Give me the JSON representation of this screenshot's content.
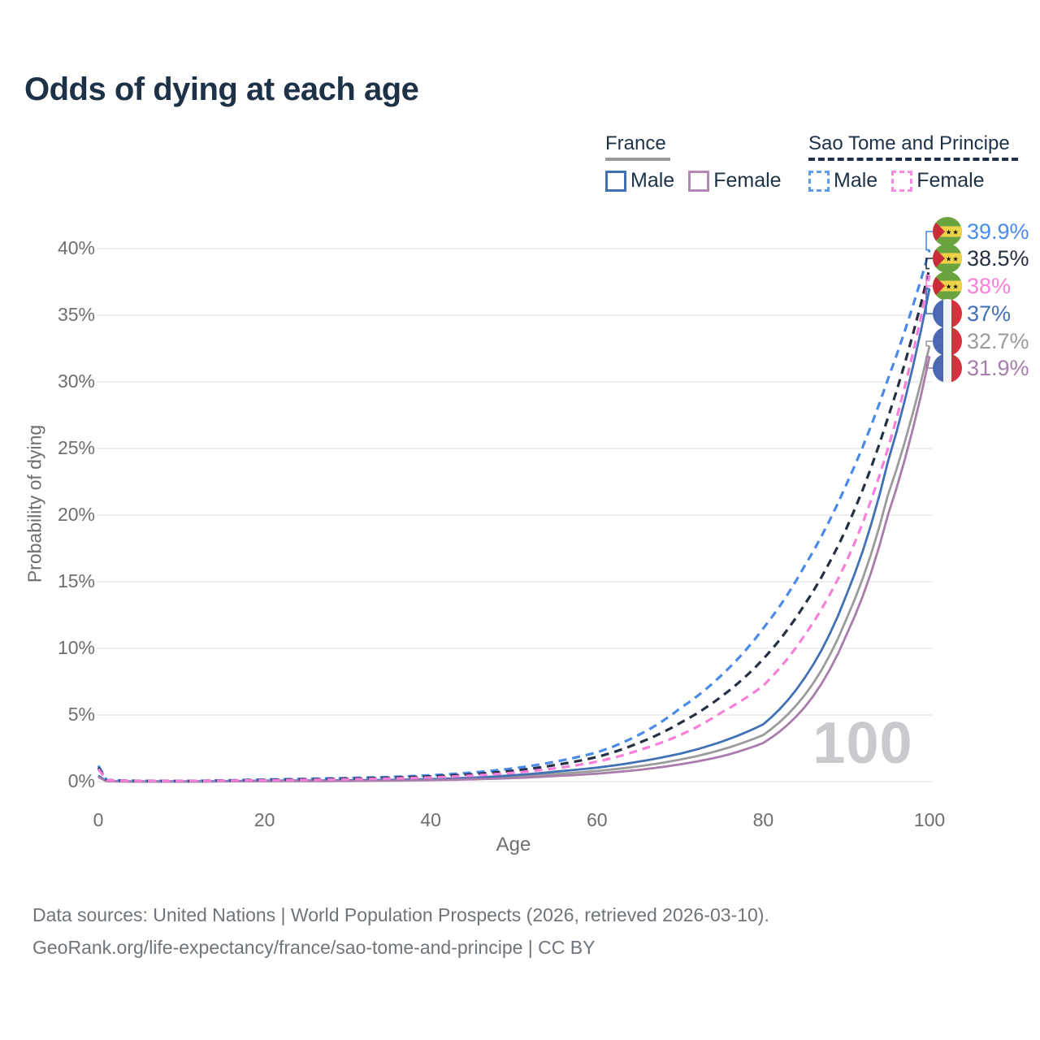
{
  "title": "Odds of dying at each age",
  "legend": {
    "groups": [
      {
        "name": "France",
        "line_style": "solid",
        "underline_color": "#9b9b9b",
        "items": [
          {
            "label": "Male",
            "color": "#4270b4"
          },
          {
            "label": "Female",
            "color": "#b287b5"
          }
        ]
      },
      {
        "name": "Sao Tome and Principe",
        "line_style": "dashed",
        "underline_color": "#20304a",
        "items": [
          {
            "label": "Male",
            "color": "#5e9bed"
          },
          {
            "label": "Female",
            "color": "#fb8ae4"
          }
        ]
      }
    ]
  },
  "chart_data": {
    "type": "line",
    "title": "Odds of dying at each age",
    "xlabel": "Age",
    "ylabel": "Probability of dying",
    "xlim": [
      0,
      100
    ],
    "ylim": [
      0,
      40
    ],
    "x_ticks": [
      0,
      20,
      40,
      60,
      80,
      100
    ],
    "y_ticks": [
      0,
      5,
      10,
      15,
      20,
      25,
      30,
      35,
      40
    ],
    "y_tick_suffix": "%",
    "grid": "horizontal",
    "legend_position": "top-right",
    "hover_age_label": "100",
    "x": [
      0,
      1,
      5,
      10,
      15,
      20,
      25,
      30,
      35,
      40,
      45,
      50,
      55,
      60,
      65,
      70,
      75,
      80,
      85,
      90,
      95,
      100
    ],
    "series": [
      {
        "name": "Sao Tome and Principe Male",
        "country": "Sao Tome and Principe",
        "sex": "Male",
        "flag": "sao-tome-and-principe",
        "color": "#4a8bea",
        "dashed": true,
        "end_value": 39.9,
        "end_label": "39.9%",
        "values": [
          1.2,
          0.12,
          0.055,
          0.05,
          0.09,
          0.16,
          0.21,
          0.27,
          0.35,
          0.48,
          0.68,
          1.0,
          1.5,
          2.2,
          3.5,
          5.5,
          8.0,
          11.5,
          16.2,
          22.3,
          30.2,
          39.9
        ]
      },
      {
        "name": "Sao Tome and Principe Both sexes",
        "country": "Sao Tome and Principe",
        "sex": "Both sexes",
        "flag": "sao-tome-and-principe",
        "color": "#253142",
        "dashed": true,
        "end_value": 38.5,
        "end_label": "38.5%",
        "values": [
          1.05,
          0.11,
          0.05,
          0.045,
          0.08,
          0.13,
          0.17,
          0.22,
          0.29,
          0.39,
          0.55,
          0.82,
          1.25,
          1.85,
          2.9,
          4.4,
          6.4,
          9.2,
          13.3,
          19.0,
          27.3,
          38.5
        ]
      },
      {
        "name": "Sao Tome and Principe Female",
        "country": "Sao Tome and Principe",
        "sex": "Female",
        "flag": "sao-tome-and-principe",
        "color": "#f87fd9",
        "dashed": true,
        "end_value": 38.0,
        "end_label": "38%",
        "values": [
          0.95,
          0.1,
          0.045,
          0.04,
          0.07,
          0.1,
          0.13,
          0.17,
          0.23,
          0.31,
          0.45,
          0.67,
          1.0,
          1.5,
          2.35,
          3.5,
          5.2,
          7.2,
          11.0,
          16.5,
          25.0,
          38.0
        ]
      },
      {
        "name": "France Male",
        "country": "France",
        "sex": "Male",
        "flag": "france",
        "color": "#4270b4",
        "dashed": false,
        "end_value": 37.0,
        "end_label": "37%",
        "values": [
          0.45,
          0.03,
          0.01,
          0.01,
          0.03,
          0.07,
          0.08,
          0.1,
          0.13,
          0.19,
          0.3,
          0.48,
          0.75,
          1.05,
          1.5,
          2.1,
          3.0,
          4.3,
          7.8,
          14.0,
          24.0,
          37.0
        ]
      },
      {
        "name": "France Both sexes",
        "country": "France",
        "sex": "Both sexes",
        "flag": "france",
        "color": "#9b9b9b",
        "dashed": false,
        "end_value": 32.7,
        "end_label": "32.7%",
        "values": [
          0.4,
          0.028,
          0.01,
          0.01,
          0.025,
          0.05,
          0.06,
          0.08,
          0.1,
          0.15,
          0.23,
          0.37,
          0.57,
          0.8,
          1.15,
          1.65,
          2.4,
          3.5,
          6.5,
          12.2,
          21.5,
          32.7
        ]
      },
      {
        "name": "France Female",
        "country": "France",
        "sex": "Female",
        "flag": "france",
        "color": "#a87cab",
        "dashed": false,
        "end_value": 31.9,
        "end_label": "31.9%",
        "values": [
          0.35,
          0.025,
          0.01,
          0.01,
          0.02,
          0.03,
          0.04,
          0.05,
          0.07,
          0.11,
          0.17,
          0.27,
          0.42,
          0.6,
          0.88,
          1.3,
          1.9,
          2.9,
          5.6,
          11.0,
          20.0,
          31.9
        ]
      }
    ]
  },
  "footer": {
    "line1": "Data sources: United Nations | World Population Prospects (2026, retrieved 2026-03-10).",
    "line2": "GeoRank.org/life-expectancy/france/sao-tome-and-principe | CC BY"
  }
}
